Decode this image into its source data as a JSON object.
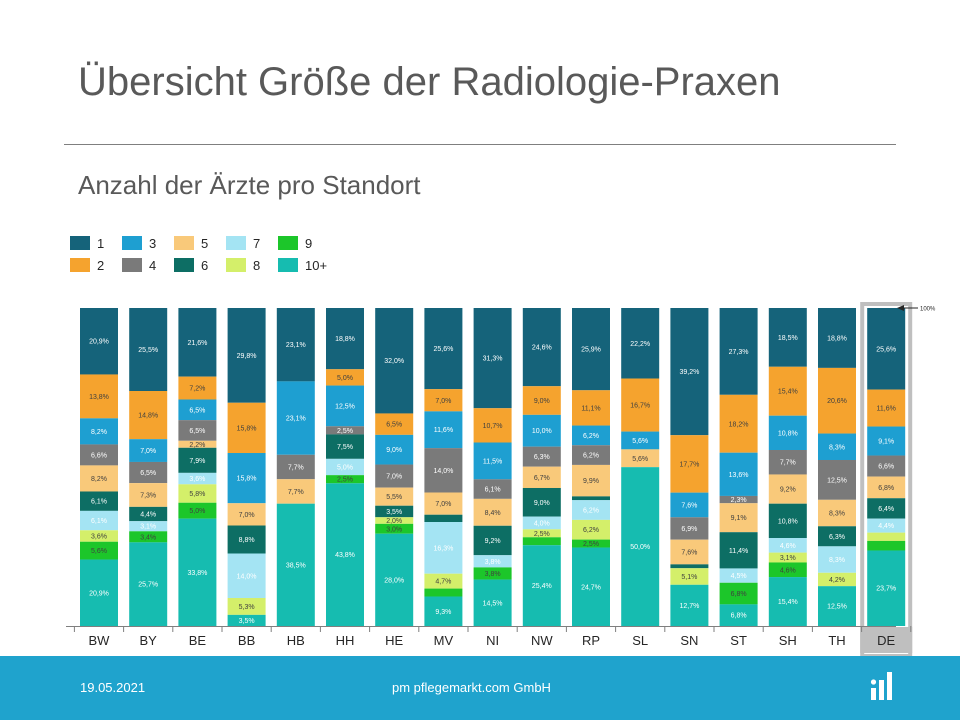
{
  "slide": {
    "title": "Übersicht Größe der Radiologie-Praxen",
    "subtitle": "Anzahl der Ärzte pro Standort"
  },
  "legend": {
    "items": [
      {
        "label": "1",
        "color": "#15637a"
      },
      {
        "label": "2",
        "color": "#f5a32e"
      },
      {
        "label": "3",
        "color": "#1e9fd1"
      },
      {
        "label": "4",
        "color": "#7a7a7a"
      },
      {
        "label": "5",
        "color": "#f9c97a"
      },
      {
        "label": "6",
        "color": "#0d6e64"
      },
      {
        "label": "7",
        "color": "#a4e4f3"
      },
      {
        "label": "8",
        "color": "#d4ef6a"
      },
      {
        "label": "9",
        "color": "#1cc62a"
      },
      {
        "label": "10+",
        "color": "#16bcb0"
      }
    ]
  },
  "chart_data": {
    "type": "bar",
    "stacked": true,
    "categories": [
      "BW",
      "BY",
      "BE",
      "BB",
      "HB",
      "HH",
      "HE",
      "MV",
      "NI",
      "NW",
      "RP",
      "SL",
      "SN",
      "ST",
      "SH",
      "TH",
      "DE"
    ],
    "highlight_category": "DE",
    "reference_label": "100%",
    "series": [
      {
        "name": "1",
        "values": [
          20.9,
          25.5,
          21.6,
          29.8,
          23.1,
          18.8,
          32.0,
          25.6,
          31.3,
          24.6,
          25.9,
          22.2,
          39.2,
          27.3,
          18.5,
          18.8,
          25.6
        ],
        "labels": [
          "20,9%",
          "25,5%",
          "21,6%",
          "29,8%",
          "23,1%",
          "18,8%",
          "32,0%",
          "25,6%",
          "31,3%",
          "24,6%",
          "25,9%",
          "22,2%",
          "39,2%",
          "27,3%",
          "18,5%",
          "18,8%",
          "25,6%"
        ]
      },
      {
        "name": "2",
        "values": [
          13.8,
          14.8,
          7.2,
          15.8,
          0,
          5.0,
          6.5,
          7.0,
          10.7,
          9.0,
          11.1,
          16.7,
          17.7,
          18.2,
          15.4,
          20.6,
          11.6
        ],
        "labels": [
          "13,8%",
          "14,8%",
          "7,2%",
          "15,8%",
          "",
          "5,0%",
          "6,5%",
          "7,0%",
          "10,7%",
          "9,0%",
          "11,1%",
          "16,7%",
          "17,7%",
          "18,2%",
          "15,4%",
          "20,6%",
          "11,6%"
        ]
      },
      {
        "name": "3",
        "values": [
          8.2,
          7.0,
          6.5,
          15.8,
          23.1,
          12.5,
          9.0,
          11.6,
          11.5,
          10.0,
          6.2,
          5.6,
          7.6,
          13.6,
          10.8,
          8.3,
          9.1
        ],
        "labels": [
          "8,2%",
          "7,0%",
          "6,5%",
          "15,8%",
          "23,1%",
          "12,5%",
          "9,0%",
          "11,6%",
          "11,5%",
          "10,0%",
          "6,2%",
          "5,6%",
          "7,6%",
          "13,6%",
          "10,8%",
          "8,3%",
          "9,1%"
        ]
      },
      {
        "name": "4",
        "values": [
          6.6,
          6.5,
          6.5,
          0,
          7.7,
          2.5,
          7.0,
          14.0,
          6.1,
          6.3,
          6.2,
          0,
          6.9,
          2.3,
          7.7,
          12.5,
          6.6
        ],
        "labels": [
          "6,6%",
          "6,5%",
          "6,5%",
          "",
          "7,7%",
          "2,5%",
          "7,0%",
          "14,0%",
          "6,1%",
          "6,3%",
          "6,2%",
          "",
          "6,9%",
          "2,3%",
          "7,7%",
          "12,5%",
          "6,6%"
        ]
      },
      {
        "name": "5",
        "values": [
          8.2,
          7.3,
          2.2,
          7.0,
          7.7,
          0,
          5.5,
          7.0,
          8.4,
          6.7,
          9.9,
          5.6,
          7.6,
          9.1,
          9.2,
          8.3,
          6.8
        ],
        "labels": [
          "8,2%",
          "7,3%",
          "2,2%",
          "7,0%",
          "7,7%",
          "",
          "5,5%",
          "7,0%",
          "8,4%",
          "6,7%",
          "9,9%",
          "5,6%",
          "7,6%",
          "9,1%",
          "9,2%",
          "8,3%",
          "6,8%"
        ]
      },
      {
        "name": "6",
        "values": [
          6.1,
          4.4,
          7.9,
          8.8,
          0,
          7.5,
          3.5,
          2.3,
          9.2,
          9.0,
          1.2,
          0,
          1.2,
          11.4,
          10.8,
          6.3,
          6.4
        ],
        "labels": [
          "6,1%",
          "4,4%",
          "7,9%",
          "8,8%",
          "",
          "7,5%",
          "3,5%",
          "",
          "9,2%",
          "9,0%",
          "",
          "",
          "",
          "11,4%",
          "10,8%",
          "6,3%",
          "6,4%"
        ]
      },
      {
        "name": "7",
        "values": [
          6.1,
          3.1,
          3.6,
          14.0,
          0,
          5.0,
          0,
          16.3,
          3.8,
          4.0,
          6.2,
          0,
          0,
          4.5,
          4.6,
          8.3,
          4.4
        ],
        "labels": [
          "6,1%",
          "3,1%",
          "3,6%",
          "14,0%",
          "",
          "5,0%",
          "",
          "16,3%",
          "3,8%",
          "4,0%",
          "6,2%",
          "",
          "",
          "4,5%",
          "4,6%",
          "8,3%",
          "4,4%"
        ]
      },
      {
        "name": "8",
        "values": [
          3.6,
          0,
          5.8,
          5.3,
          0,
          0,
          2.0,
          4.7,
          0,
          2.5,
          6.2,
          0,
          5.1,
          0,
          3.1,
          4.2,
          2.6
        ],
        "labels": [
          "3,6%",
          "",
          "5,8%",
          "5,3%",
          "",
          "",
          "2,0%",
          "4,7%",
          "",
          "2,5%",
          "6,2%",
          "",
          "5,1%",
          "",
          "3,1%",
          "4,2%",
          ""
        ]
      },
      {
        "name": "9",
        "values": [
          5.6,
          3.4,
          5.0,
          0,
          0,
          2.5,
          3.0,
          2.5,
          3.8,
          2.5,
          2.5,
          0,
          0,
          6.8,
          4.6,
          0,
          3.0
        ],
        "labels": [
          "5,6%",
          "3,4%",
          "5,0%",
          "",
          "",
          "2,5%",
          "3,0%",
          "",
          "3,8%",
          "",
          "2,5%",
          "",
          "",
          "6,8%",
          "4,6%",
          "",
          ""
        ]
      },
      {
        "name": "10+",
        "values": [
          20.9,
          25.7,
          33.8,
          3.5,
          38.5,
          43.8,
          28.0,
          9.3,
          14.5,
          25.4,
          24.7,
          50.0,
          12.7,
          6.8,
          15.4,
          12.5,
          23.7
        ],
        "labels": [
          "20,9%",
          "25,7%",
          "33,8%",
          "3,5%",
          "38,5%",
          "43,8%",
          "28,0%",
          "9,3%",
          "14,5%",
          "25,4%",
          "24,7%",
          "50,0%",
          "12,7%",
          "6,8%",
          "15,4%",
          "12,5%",
          "23,7%"
        ]
      }
    ],
    "ylim": [
      0,
      100
    ],
    "xlabel": "",
    "ylabel": ""
  },
  "footer": {
    "date": "19.05.2021",
    "company": "pm pflegemarkt.com GmbH"
  }
}
